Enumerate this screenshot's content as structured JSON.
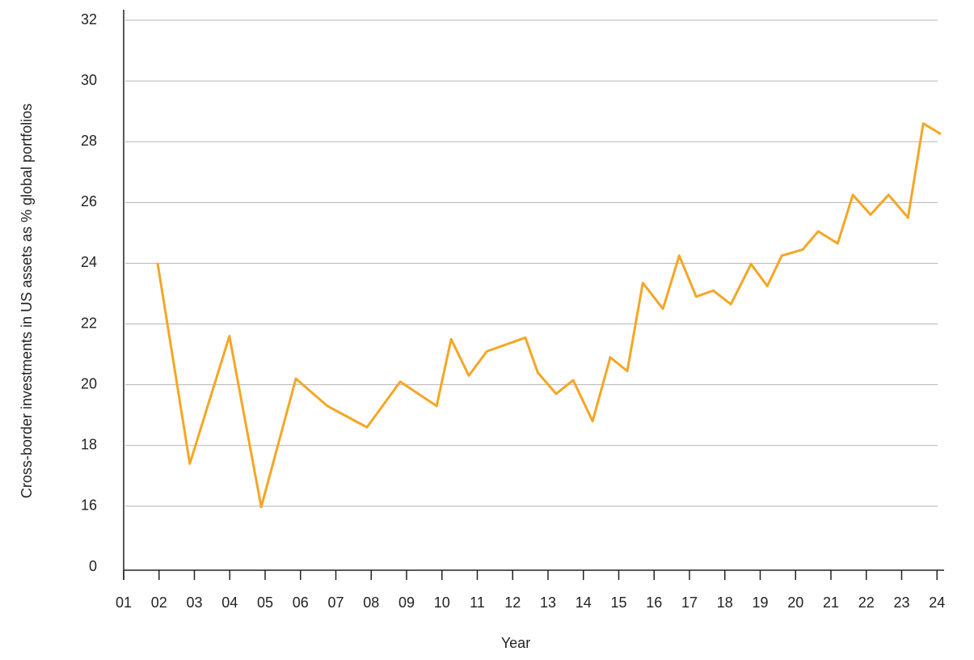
{
  "chart_data": {
    "type": "line",
    "x_label": "Year",
    "y_label": "Cross-border investments in US assets as % global portfolios",
    "series": [
      {
        "name": "Cross-border investments",
        "color": "#f5a623",
        "x": [
          1.96,
          2.87,
          3.99,
          4.89,
          5.87,
          6.76,
          7.88,
          8.82,
          9.85,
          10.26,
          10.76,
          11.27,
          12.36,
          12.71,
          13.23,
          13.71,
          14.26,
          14.76,
          15.24,
          15.68,
          16.25,
          16.71,
          17.19,
          17.67,
          18.17,
          18.74,
          19.2,
          19.61,
          20.2,
          20.64,
          21.19,
          21.62,
          22.12,
          22.63,
          23.18,
          23.61,
          24.11
        ],
        "values": [
          24.0,
          17.4,
          21.6,
          15.8,
          20.2,
          19.3,
          18.6,
          20.1,
          19.3,
          21.5,
          20.3,
          21.1,
          21.55,
          20.4,
          19.7,
          20.15,
          18.8,
          20.9,
          20.45,
          23.35,
          22.5,
          24.25,
          22.9,
          23.1,
          22.65,
          23.97,
          23.25,
          24.25,
          24.45,
          25.05,
          24.65,
          26.25,
          25.6,
          26.25,
          25.5,
          28.6,
          28.25
        ]
      }
    ],
    "xlim": [
      1,
      24.2
    ],
    "xticks": [
      {
        "value": 1,
        "label": "01"
      },
      {
        "value": 2,
        "label": "02"
      },
      {
        "value": 3,
        "label": "03"
      },
      {
        "value": 4,
        "label": "04"
      },
      {
        "value": 5,
        "label": "05"
      },
      {
        "value": 6,
        "label": "06"
      },
      {
        "value": 7,
        "label": "07"
      },
      {
        "value": 8,
        "label": "08"
      },
      {
        "value": 9,
        "label": "09"
      },
      10,
      11,
      12,
      13,
      14,
      15,
      16,
      17,
      18,
      19,
      20,
      21,
      22,
      23,
      24
    ],
    "ylim": [
      0,
      32
    ],
    "yticks": [
      0,
      16,
      18,
      20,
      22,
      24,
      26,
      28,
      30,
      32
    ],
    "axis_break": true,
    "grid": true
  }
}
